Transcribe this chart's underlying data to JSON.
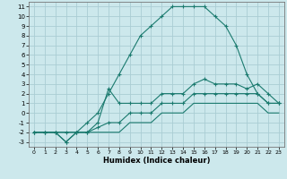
{
  "title": "",
  "xlabel": "Humidex (Indice chaleur)",
  "bg_color": "#cce8ec",
  "grid_color": "#aacdd4",
  "line_color": "#1a7a6e",
  "xlim": [
    -0.5,
    23.5
  ],
  "ylim": [
    -3.5,
    11.5
  ],
  "xticks": [
    0,
    1,
    2,
    3,
    4,
    5,
    6,
    7,
    8,
    9,
    10,
    11,
    12,
    13,
    14,
    15,
    16,
    17,
    18,
    19,
    20,
    21,
    22,
    23
  ],
  "yticks": [
    -3,
    -2,
    -1,
    0,
    1,
    2,
    3,
    4,
    5,
    6,
    7,
    8,
    9,
    10,
    11
  ],
  "series": [
    {
      "x": [
        0,
        1,
        2,
        3,
        4,
        5,
        6,
        7,
        8,
        9,
        10,
        11,
        12,
        13,
        14,
        15,
        16,
        17,
        18,
        19,
        20,
        21,
        22,
        23
      ],
      "y": [
        -2,
        -2,
        -2,
        -3,
        -2,
        -1,
        0,
        2,
        4,
        6,
        8,
        9,
        10,
        11,
        11,
        11,
        11,
        10,
        9,
        7,
        4,
        2,
        1,
        1
      ],
      "marker": "+"
    },
    {
      "x": [
        0,
        1,
        2,
        3,
        4,
        5,
        6,
        7,
        8,
        9,
        10,
        11,
        12,
        13,
        14,
        15,
        16,
        17,
        18,
        19,
        20,
        21,
        22,
        23
      ],
      "y": [
        -2,
        -2,
        -2,
        -3,
        -2,
        -2,
        -1,
        2.5,
        1,
        1,
        1,
        1,
        2,
        2,
        2,
        3,
        3.5,
        3,
        3,
        3,
        2.5,
        3,
        2,
        1
      ],
      "marker": "+"
    },
    {
      "x": [
        0,
        1,
        2,
        3,
        4,
        5,
        6,
        7,
        8,
        9,
        10,
        11,
        12,
        13,
        14,
        15,
        16,
        17,
        18,
        19,
        20,
        21,
        22,
        23
      ],
      "y": [
        -2,
        -2,
        -2,
        -2,
        -2,
        -2,
        -1.5,
        -1,
        -1,
        0,
        0,
        0,
        1,
        1,
        1,
        2,
        2,
        2,
        2,
        2,
        2,
        2,
        1,
        1
      ],
      "marker": "+"
    },
    {
      "x": [
        0,
        1,
        2,
        3,
        4,
        5,
        6,
        7,
        8,
        9,
        10,
        11,
        12,
        13,
        14,
        15,
        16,
        17,
        18,
        19,
        20,
        21,
        22,
        23
      ],
      "y": [
        -2,
        -2,
        -2,
        -2,
        -2,
        -2,
        -2,
        -2,
        -2,
        -1,
        -1,
        -1,
        0,
        0,
        0,
        1,
        1,
        1,
        1,
        1,
        1,
        1,
        0,
        0
      ],
      "marker": null
    }
  ]
}
